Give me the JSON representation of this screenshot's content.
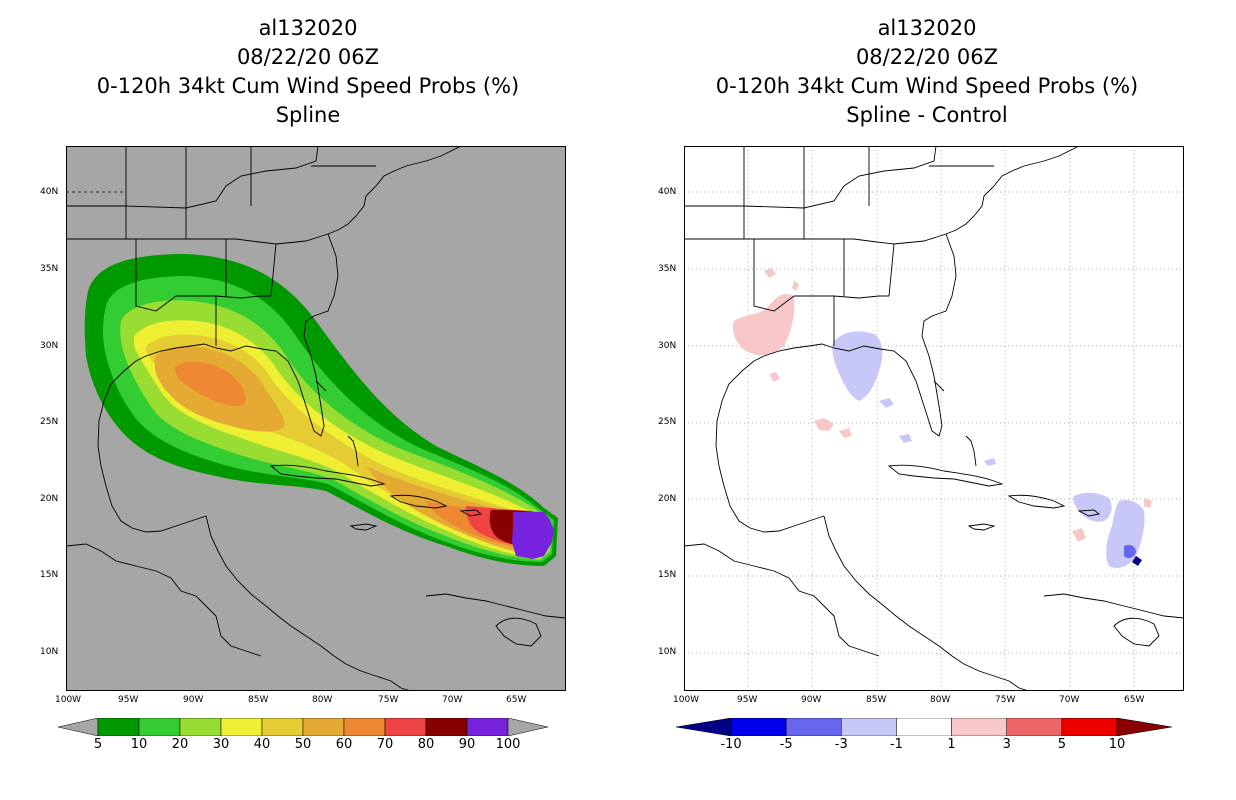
{
  "left_panel": {
    "title_lines": [
      "al132020",
      "08/22/20 06Z",
      "0-120h 34kt Cum Wind Speed Probs (%)",
      "Spline"
    ],
    "background_color": "#a6a6a6",
    "colorbar": {
      "labels": [
        "5",
        "10",
        "20",
        "30",
        "40",
        "50",
        "60",
        "70",
        "80",
        "90",
        "100"
      ],
      "colors": [
        "#009900",
        "#33cc33",
        "#99dd33",
        "#eeee33",
        "#e5cc33",
        "#e5aa33",
        "#ee8833",
        "#ee4444",
        "#880000",
        "#7722dd"
      ],
      "end_colors": [
        "#a6a6a6",
        "#a6a6a6"
      ]
    }
  },
  "right_panel": {
    "title_lines": [
      "al132020",
      "08/22/20 06Z",
      "0-120h 34kt Cum Wind Speed Probs (%)",
      "Spline - Control"
    ],
    "background_color": "#ffffff",
    "colorbar": {
      "labels": [
        "-10",
        "-5",
        "-3",
        "-1",
        "1",
        "3",
        "5",
        "10"
      ],
      "colors": [
        "#0000ee",
        "#6666ee",
        "#c8c8f8",
        "#ffffff",
        "#f8c8c8",
        "#ee6666",
        "#ee0000"
      ],
      "end_colors": [
        "#000088",
        "#880000"
      ]
    }
  },
  "axes": {
    "lat_labels": [
      "40N",
      "35N",
      "30N",
      "25N",
      "20N",
      "15N",
      "10N"
    ],
    "lon_labels": [
      "100W",
      "95W",
      "90W",
      "85W",
      "80W",
      "75W",
      "70W",
      "65W"
    ]
  }
}
